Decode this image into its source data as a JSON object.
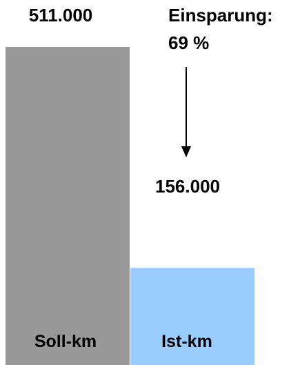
{
  "chart_data": {
    "type": "bar",
    "categories": [
      "Soll-km",
      "Ist-km"
    ],
    "values": [
      511000,
      156000
    ],
    "value_labels": [
      "511.000",
      "156.000"
    ],
    "colors": [
      "#999999",
      "#99ccff"
    ],
    "ylim": [
      0,
      511000
    ],
    "grid": false,
    "annotation": {
      "line1": "Einsparung:",
      "line2": "69 %"
    }
  }
}
